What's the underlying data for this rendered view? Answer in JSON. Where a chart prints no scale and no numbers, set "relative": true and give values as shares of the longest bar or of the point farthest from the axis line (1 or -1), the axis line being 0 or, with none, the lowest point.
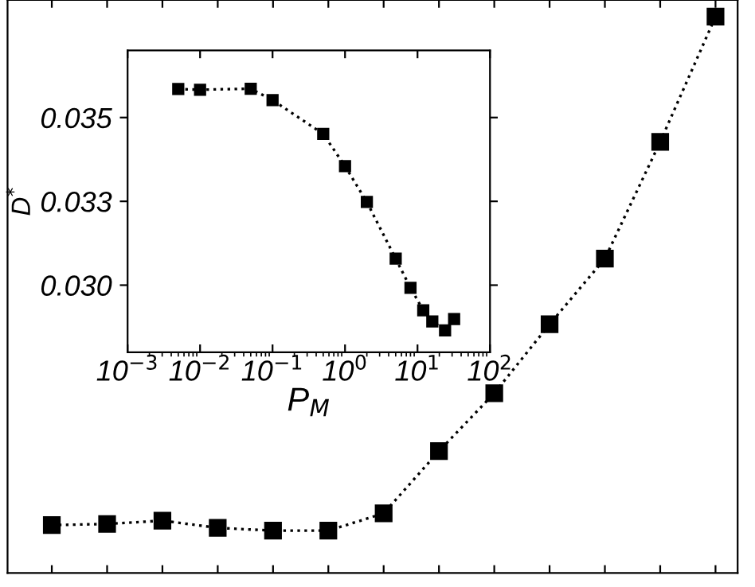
{
  "chart_data": [
    {
      "type": "line",
      "relative": true,
      "marker": "square",
      "line_style": "dotted",
      "categories": [
        null,
        null,
        null,
        null,
        null,
        null,
        null,
        null,
        null,
        null,
        null,
        null,
        null
      ],
      "series": [
        {
          "color": "#000000",
          "values": [
            0.086,
            0.088,
            0.094,
            0.081,
            0.076,
            0.076,
            0.107,
            0.219,
            0.323,
            0.447,
            0.565,
            0.775,
            1.0
          ]
        }
      ]
    },
    {
      "type": "line",
      "log": "x",
      "marker": "square",
      "line_style": "dotted",
      "xlabel": "P$_{M}$",
      "ylabel": "D$^{*}$",
      "x": [
        0.005,
        0.01,
        0.05,
        0.1,
        0.5,
        1,
        2,
        5,
        8,
        12,
        16,
        24,
        32
      ],
      "series": [
        {
          "color": "#000000",
          "values": [
            0.03585,
            0.03583,
            0.03586,
            0.03552,
            0.03451,
            0.03355,
            0.03248,
            0.03079,
            0.02992,
            0.02925,
            0.02892,
            0.02865,
            0.02899
          ]
        }
      ],
      "xlim": [
        0.001,
        100
      ],
      "xticks": [
        {
          "value": 0.001,
          "label": "10$^{−3}$"
        },
        {
          "value": 0.01,
          "label": "10$^{−2}$"
        },
        {
          "value": 0.1,
          "label": "10$^{−1}$"
        },
        {
          "value": 1,
          "label": "10$^{0}$"
        },
        {
          "value": 10,
          "label": "10$^{1}$"
        },
        {
          "value": 100,
          "label": "10$^{2}$"
        }
      ],
      "ylim": [
        0.028,
        0.037
      ],
      "yticks": [
        {
          "value": 0.03,
          "label": "0.030"
        },
        {
          "value": 0.0325,
          "label": "0.033"
        },
        {
          "value": 0.035,
          "label": "0.035"
        }
      ]
    }
  ]
}
